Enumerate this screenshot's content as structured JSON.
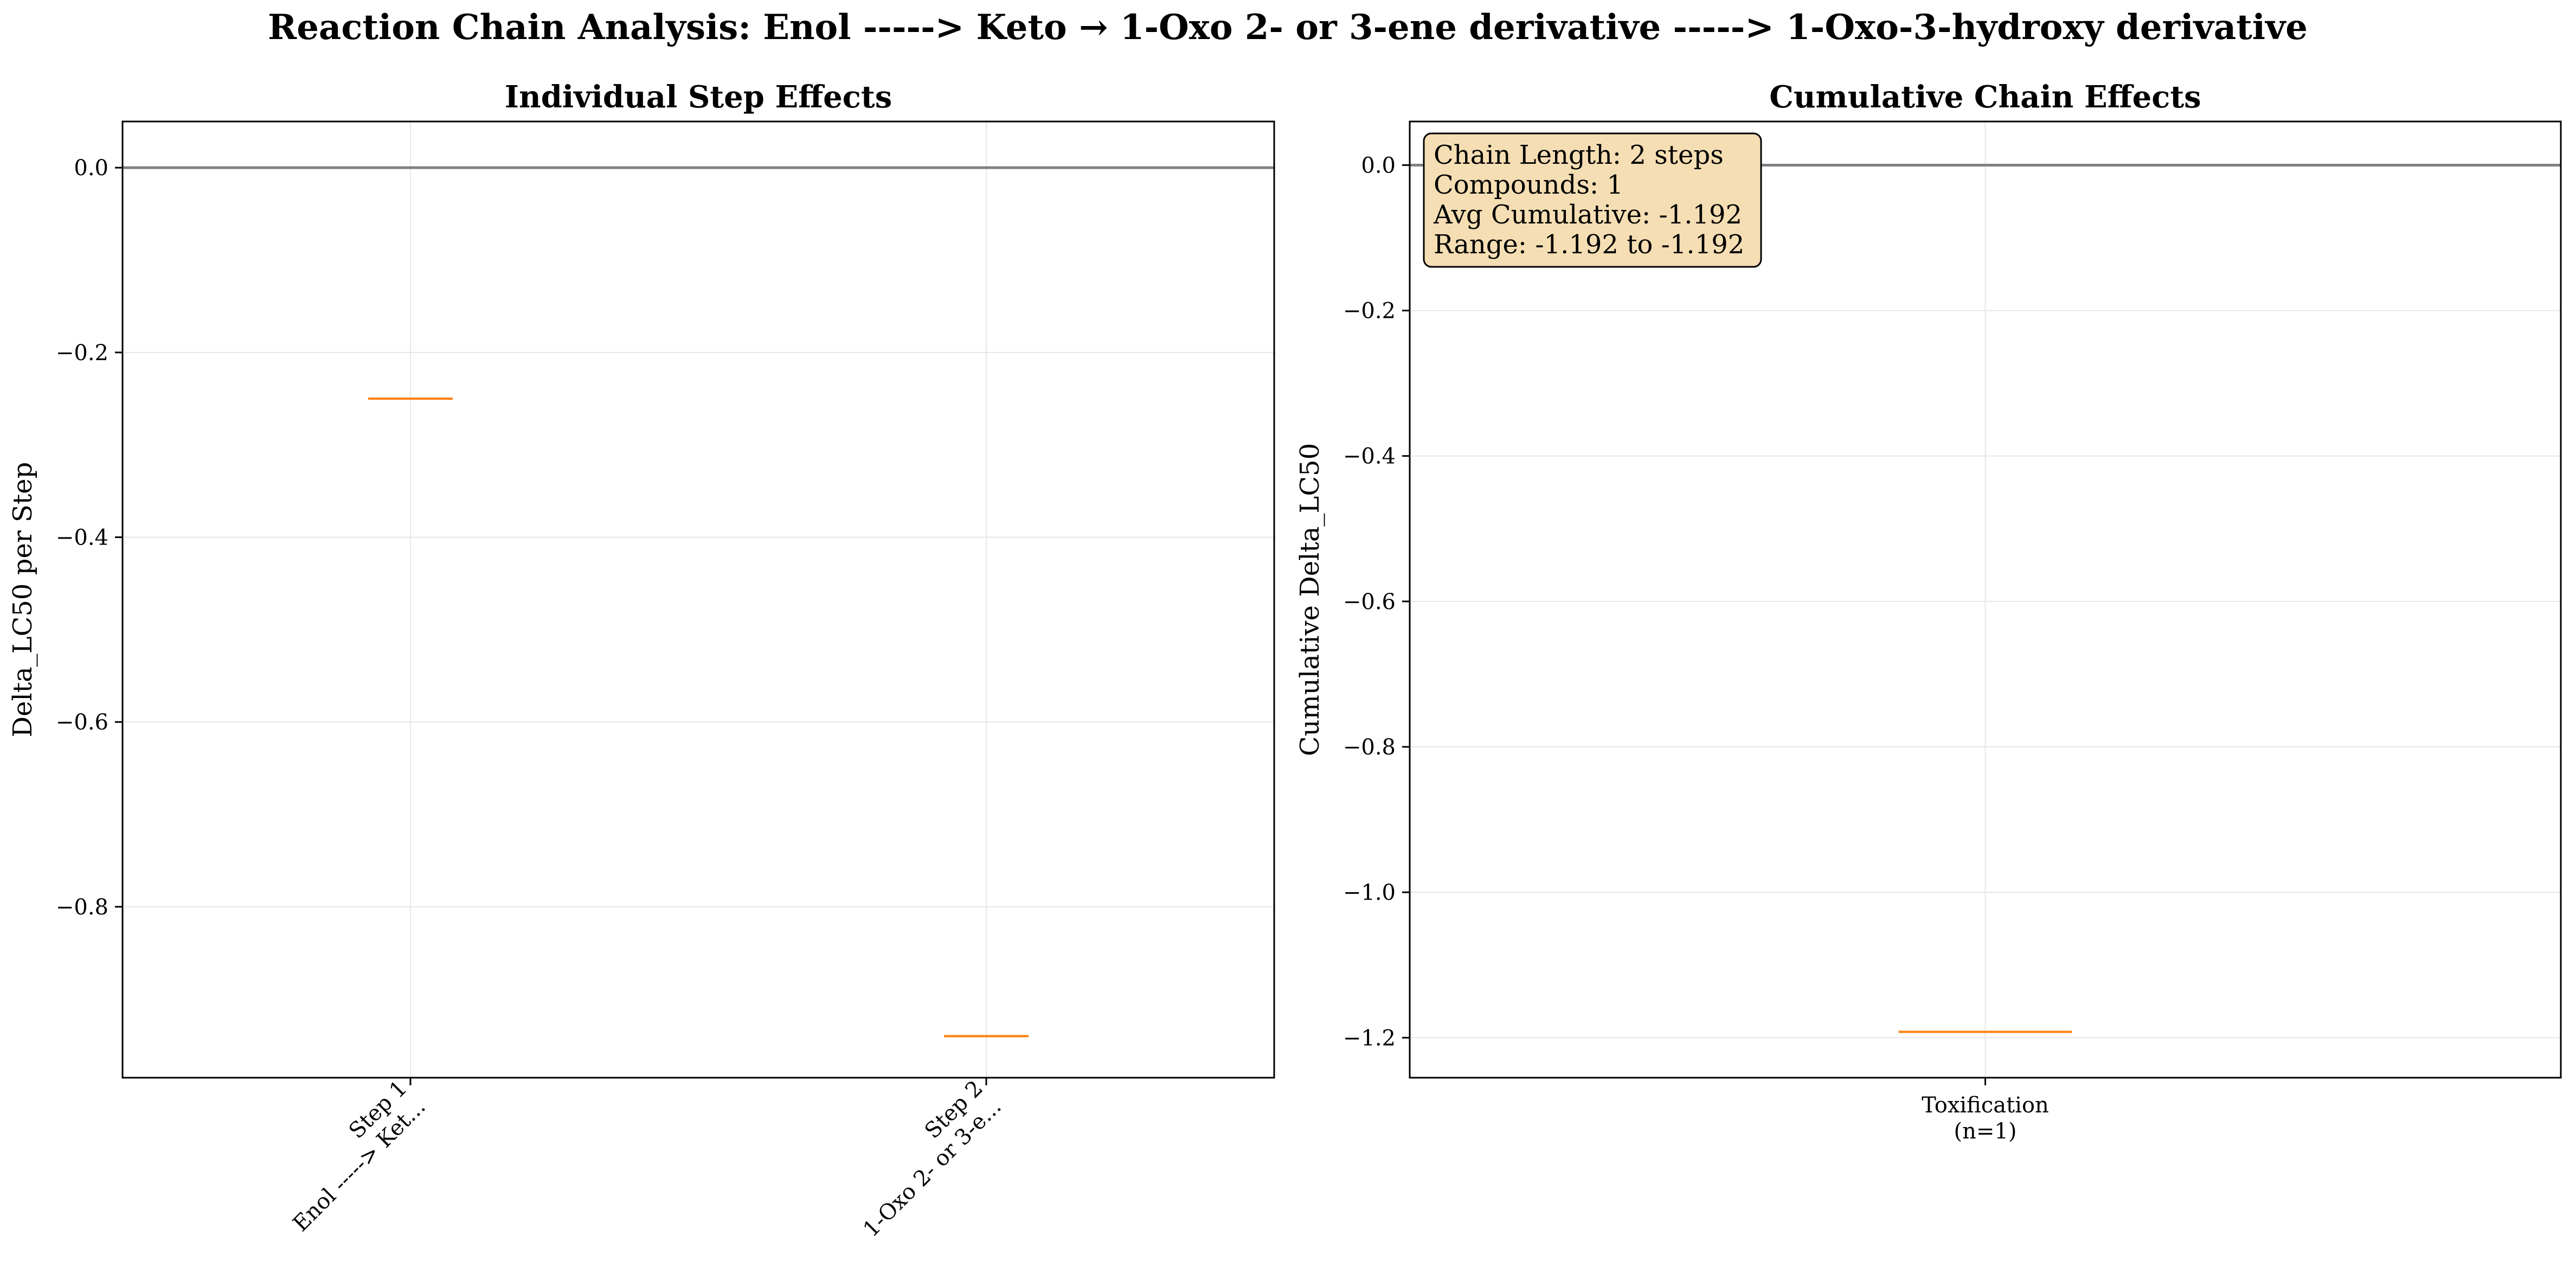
{
  "figure": {
    "suptitle": "Reaction Chain Analysis: Enol -----> Keto → 1-Oxo 2- or 3-ene derivative -----> 1-Oxo-3-hydroxy derivative"
  },
  "colors": {
    "median": "#ff7f0e",
    "zero_line": "#808080",
    "grid": "#e6e6e6",
    "axes": "#000000",
    "stats_box_fill": "#f5deb3"
  },
  "chart_data": [
    {
      "type": "box",
      "title": "Individual Step Effects",
      "xlabel": "",
      "ylabel": "Delta_LC50 per Step",
      "categories": [
        [
          "Step 1",
          "Enol -----> Ket..."
        ],
        [
          "Step 2",
          "1-Oxo 2- or 3-e..."
        ]
      ],
      "values": [
        -0.25,
        -0.94
      ],
      "ylim": [
        -0.985,
        0.05
      ],
      "yticks": [
        0.0,
        -0.2,
        -0.4,
        -0.6,
        -0.8
      ],
      "ytick_labels": [
        "0.0",
        "−0.2",
        "−0.4",
        "−0.6",
        "−0.8"
      ],
      "reference_line": 0.0,
      "grid": true,
      "xtick_rotation": "45°"
    },
    {
      "type": "box",
      "title": "Cumulative Chain Effects",
      "xlabel": "",
      "ylabel": "Cumulative Delta_LC50",
      "categories": [
        [
          "Toxification",
          "(n=1)"
        ]
      ],
      "values": [
        -1.192
      ],
      "ylim": [
        -1.255,
        0.06
      ],
      "yticks": [
        0.0,
        -0.2,
        -0.4,
        -0.6,
        -0.8,
        -1.0,
        -1.2
      ],
      "ytick_labels": [
        "0.0",
        "−0.2",
        "−0.4",
        "−0.6",
        "−0.8",
        "−1.0",
        "−1.2"
      ],
      "reference_line": 0.0,
      "grid": true,
      "annotation": {
        "placement": "top-left",
        "lines": [
          "Chain Length: 2 steps",
          "Compounds: 1",
          "Avg Cumulative: -1.192",
          "Range: -1.192 to -1.192"
        ]
      }
    }
  ]
}
